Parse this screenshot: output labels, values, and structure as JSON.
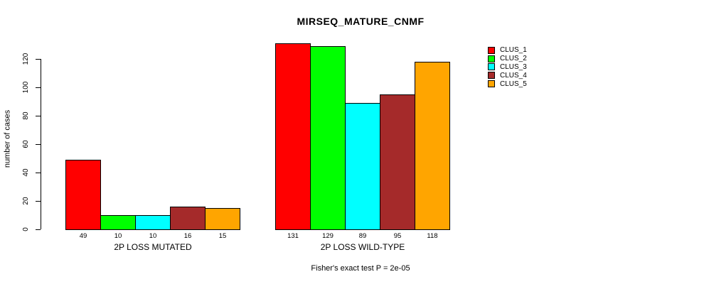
{
  "chart_data": {
    "type": "bar",
    "title": "MIRSEQ_MATURE_CNMF",
    "ylabel": "number of cases",
    "xlabel": "",
    "ylim": [
      0,
      120
    ],
    "yticks": [
      0,
      20,
      40,
      60,
      80,
      100,
      120
    ],
    "grid": false,
    "legend_position": "right",
    "categories": [
      "2P LOSS MUTATED",
      "2P LOSS WILD-TYPE"
    ],
    "groups": [
      {
        "label": "2P LOSS MUTATED",
        "values": [
          49,
          10,
          10,
          16,
          15
        ]
      },
      {
        "label": "2P LOSS WILD-TYPE",
        "values": [
          131,
          129,
          89,
          95,
          118
        ]
      }
    ],
    "series": [
      {
        "name": "CLUS_1",
        "color": "#FF0000"
      },
      {
        "name": "CLUS_2",
        "color": "#00FF00"
      },
      {
        "name": "CLUS_3",
        "color": "#00FFFF"
      },
      {
        "name": "CLUS_4",
        "color": "#A52A2A"
      },
      {
        "name": "CLUS_5",
        "color": "#FFA500"
      }
    ],
    "annotation": "Fisher's exact test P = 2e-05",
    "axis_color": "#000000",
    "background_color": "#FFFFFF"
  }
}
